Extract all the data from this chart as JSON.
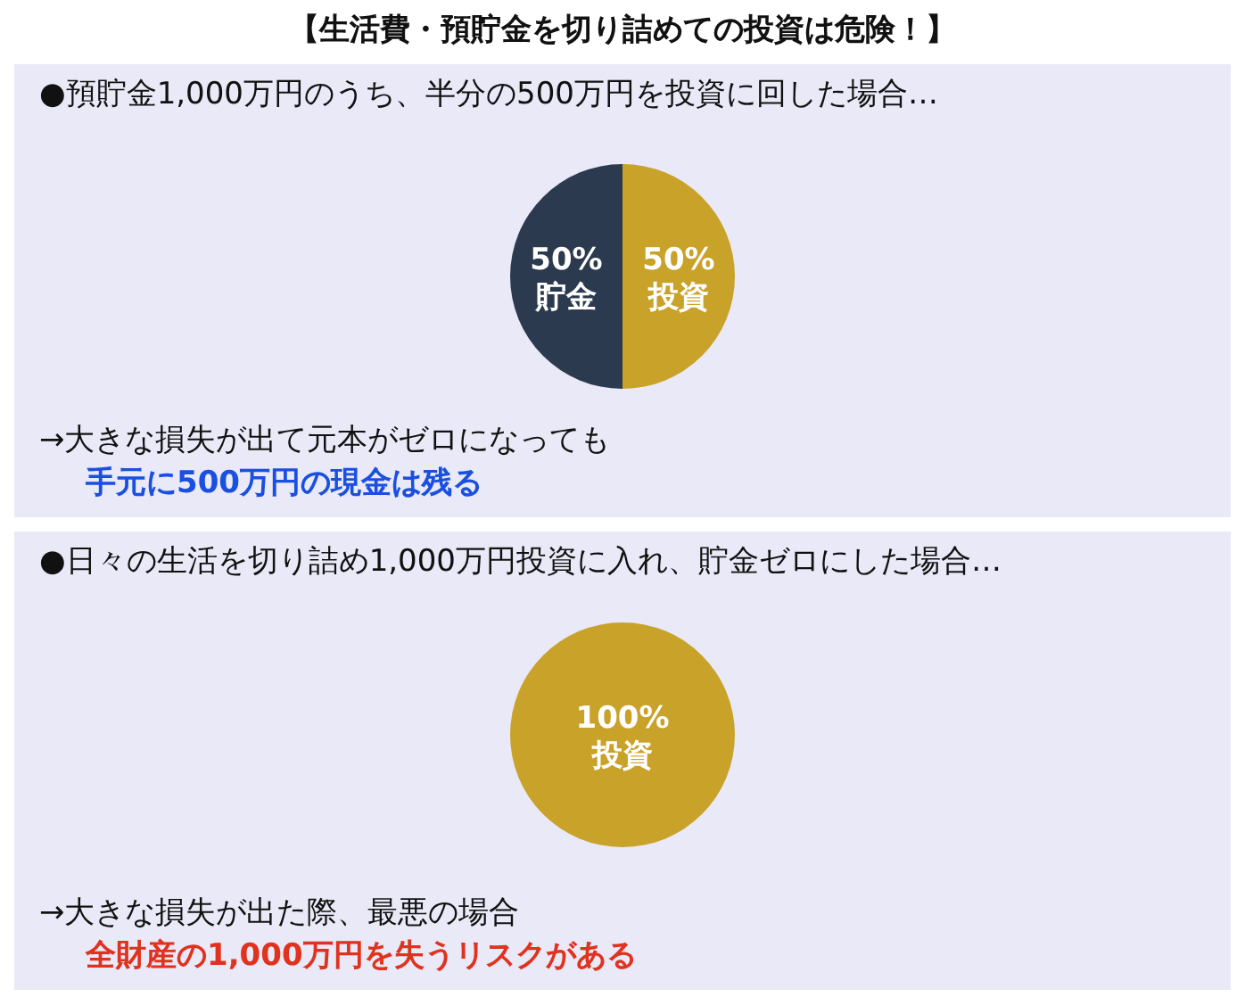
{
  "chart_data": [
    {
      "type": "pie",
      "title": "【生活費・預貯金を切り詰めての投資は危険！】",
      "subtitle": "●預貯金1,000万円のうち、半分の500万円を投資に回した場合…",
      "categories": [
        "貯金",
        "投資"
      ],
      "values": [
        50,
        50
      ],
      "value_labels": [
        "50%",
        "50%"
      ],
      "colors": [
        "#2c3a4f",
        "#c9a22a"
      ],
      "annotations": [
        "→大きな損失が出て元本がゼロになっても",
        "手元に500万円の現金は残る"
      ]
    },
    {
      "type": "pie",
      "subtitle": "●日々の生活を切り詰め1,000万円投資に入れ、貯金ゼロにした場合…",
      "categories": [
        "投資"
      ],
      "values": [
        100
      ],
      "value_labels": [
        "100%"
      ],
      "colors": [
        "#c9a22a"
      ],
      "annotations": [
        "→大きな損失が出た際、最悪の場合",
        "全財産の1,000万円を失うリスクがある"
      ]
    }
  ]
}
